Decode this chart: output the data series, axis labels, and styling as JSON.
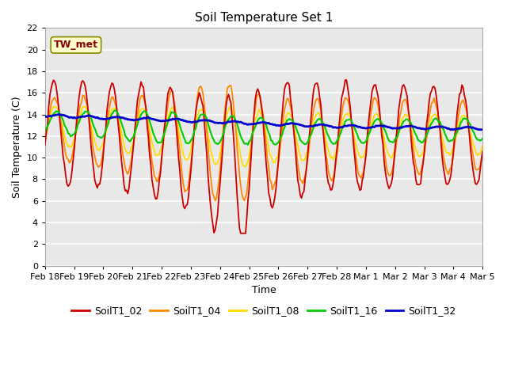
{
  "title": "Soil Temperature Set 1",
  "xlabel": "Time",
  "ylabel": "Soil Temperature (C)",
  "ylim": [
    0,
    22
  ],
  "yticks": [
    0,
    2,
    4,
    6,
    8,
    10,
    12,
    14,
    16,
    18,
    20,
    22
  ],
  "plot_bg": "#e8e8e8",
  "fig_bg": "#ffffff",
  "grid_color": "#d8d8d8",
  "series_colors": {
    "SoilT1_02": "#cc0000",
    "SoilT1_04": "#ff8800",
    "SoilT1_08": "#ffdd00",
    "SoilT1_16": "#00cc00",
    "SoilT1_32": "#0000cc"
  },
  "series_linewidths": {
    "SoilT1_02": 1.3,
    "SoilT1_04": 1.3,
    "SoilT1_08": 1.3,
    "SoilT1_16": 1.5,
    "SoilT1_32": 2.0
  },
  "annotation_text": "TW_met",
  "annotation_color": "#880000",
  "annotation_bg": "#ffffcc",
  "annotation_border": "#888800",
  "xtick_labels": [
    "Feb 18",
    "Feb 19",
    "Feb 20",
    "Feb 21",
    "Feb 22",
    "Feb 23",
    "Feb 24",
    "Feb 25",
    "Feb 26",
    "Feb 27",
    "Feb 28",
    "Mar 1",
    "Mar 2",
    "Mar 3",
    "Mar 4",
    "Mar 5"
  ]
}
